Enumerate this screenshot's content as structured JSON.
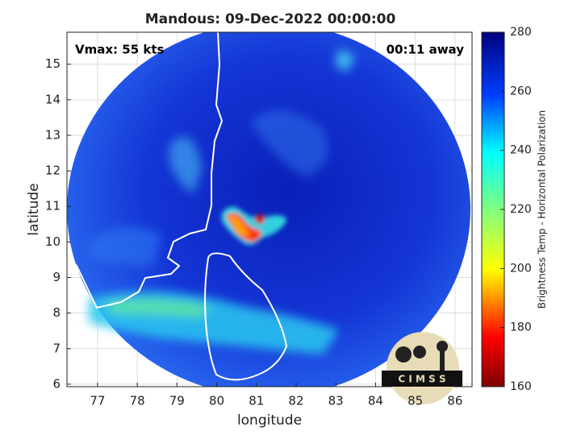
{
  "chart_data": {
    "type": "image",
    "title": "Mandous: 09-Dec-2022 00:00:00",
    "annotations": {
      "left": "Vmax: 55 kts",
      "right": "00:11 away"
    },
    "x_label": "longitude",
    "y_label": "latitude",
    "xlim": [
      76.23,
      86.43
    ],
    "ylim": [
      5.93,
      15.9
    ],
    "xticks": [
      77,
      78,
      79,
      80,
      81,
      82,
      83,
      84,
      85,
      86
    ],
    "yticks": [
      6,
      7,
      8,
      9,
      10,
      11,
      12,
      13,
      14,
      15
    ],
    "grid": true,
    "colorbar": {
      "label": "Brightness Temp - Horizontal Polarization",
      "lim": [
        160,
        280
      ],
      "ticks": [
        160,
        180,
        200,
        220,
        240,
        260,
        280
      ]
    },
    "logo": "C I M S S"
  }
}
